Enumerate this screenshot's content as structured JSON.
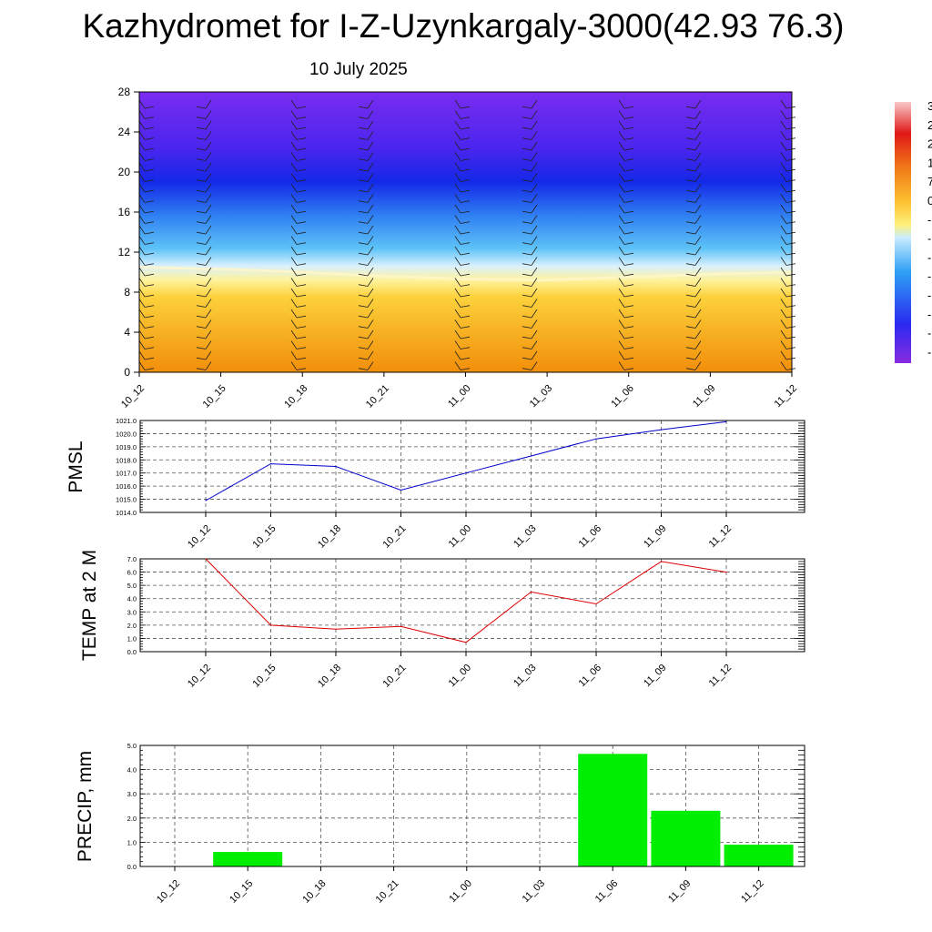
{
  "title": "Kazhydromet for I-Z-Uzynkargaly-3000(42.93 76.3)",
  "subtitle": "10 July 2025",
  "chart_data": [
    {
      "type": "heatmap",
      "title": "",
      "x_ticks": [
        "10_12",
        "10_15",
        "10_18",
        "10_21",
        "11_00",
        "11_03",
        "11_06",
        "11_09",
        "11_12"
      ],
      "y_ticks": [
        "0",
        "4",
        "8",
        "12",
        "16",
        "20",
        "24",
        "28"
      ],
      "ylim": [
        0,
        28
      ],
      "freezing_level_y": [
        10.5,
        10.3,
        10.0,
        9.6,
        9.3,
        9.2,
        9.5,
        9.8,
        10.0
      ],
      "colorbar_visible_labels": [
        "3",
        "2",
        "2",
        "1",
        "7",
        "0",
        "-",
        "-",
        "-",
        "-",
        "-",
        "-",
        "-",
        "-"
      ],
      "wind_barbs": true
    },
    {
      "type": "line",
      "ylabel": "PMSL",
      "x_ticks": [
        "10_12",
        "10_15",
        "10_18",
        "10_21",
        "11_00",
        "11_03",
        "11_06",
        "11_09",
        "11_12"
      ],
      "ylim": [
        1014.0,
        1021.0
      ],
      "y_ticks": [
        "1014.0",
        "1015.0",
        "1016.0",
        "1017.0",
        "1018.0",
        "1019.0",
        "1020.0",
        "1021.0"
      ],
      "series": [
        {
          "color": "#0000cc",
          "values": [
            1014.9,
            1017.7,
            1017.5,
            1015.7,
            1017.0,
            1018.3,
            1019.6,
            1020.3,
            1020.9
          ]
        }
      ]
    },
    {
      "type": "line",
      "ylabel": "TEMP at 2 M",
      "x_ticks": [
        "10_12",
        "10_15",
        "10_18",
        "10_21",
        "11_00",
        "11_03",
        "11_06",
        "11_09",
        "11_12"
      ],
      "ylim": [
        0.0,
        7.0
      ],
      "y_ticks": [
        "0.0",
        "1.0",
        "2.0",
        "3.0",
        "4.0",
        "5.0",
        "6.0",
        "7.0"
      ],
      "series": [
        {
          "color": "#dd0000",
          "values": [
            7.0,
            2.0,
            1.7,
            1.9,
            0.7,
            4.5,
            3.6,
            6.8,
            6.0
          ]
        }
      ]
    },
    {
      "type": "bar",
      "ylabel": "PRECIP, mm",
      "categories": [
        "10_12",
        "10_15",
        "10_18",
        "10_21",
        "11_00",
        "11_03",
        "11_06",
        "11_09",
        "11_12"
      ],
      "ylim": [
        0.0,
        5.0
      ],
      "y_ticks": [
        "0.0",
        "1.0",
        "2.0",
        "3.0",
        "4.0",
        "5.0"
      ],
      "values": [
        0.0,
        0.6,
        0.0,
        0.0,
        0.0,
        0.02,
        4.65,
        2.3,
        0.9
      ],
      "color": "#00ee00"
    }
  ]
}
